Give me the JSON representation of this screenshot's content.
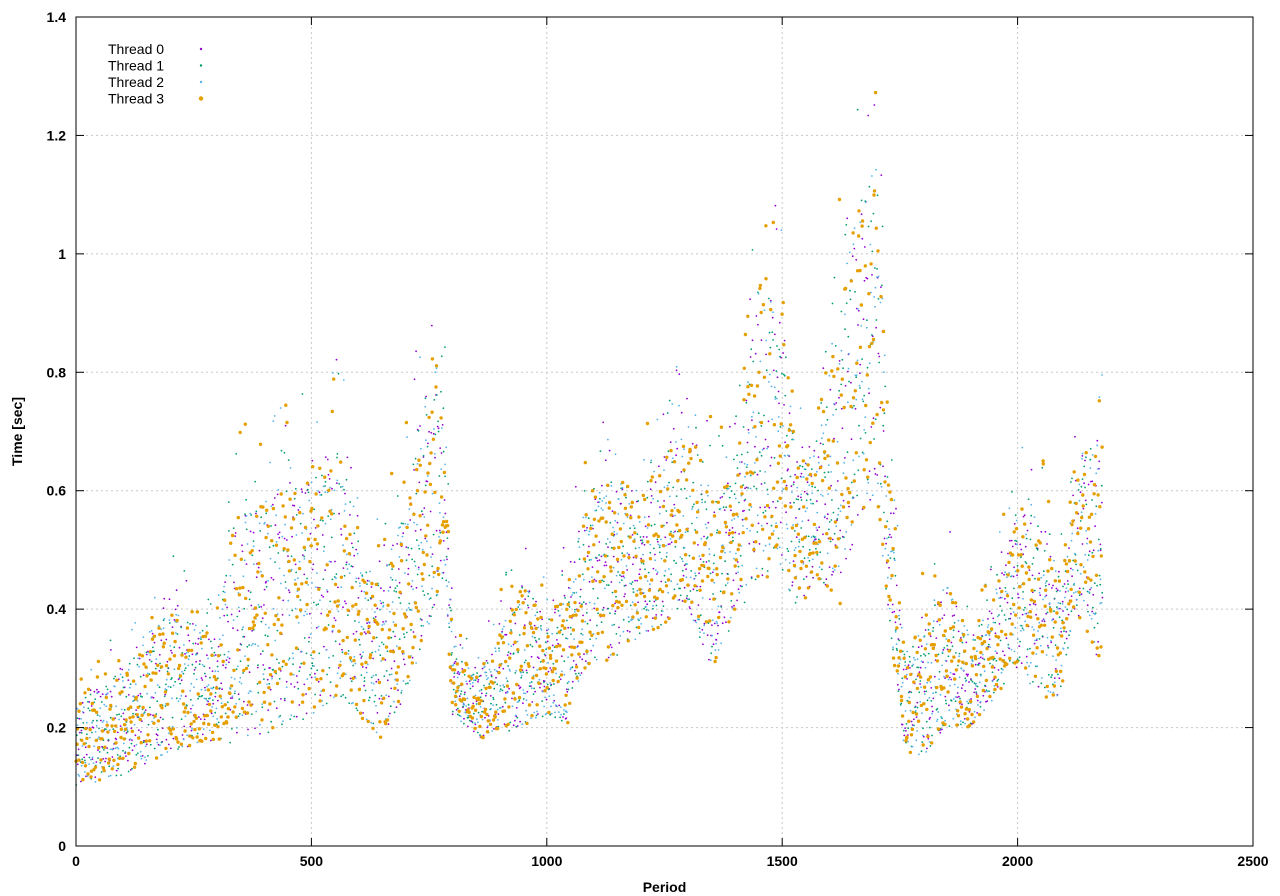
{
  "chart_data": {
    "type": "scatter",
    "title": "",
    "xlabel": "Period",
    "ylabel": "Time [sec]",
    "xlim": [
      0,
      2500
    ],
    "ylim": [
      0,
      1.4
    ],
    "x_ticks": [
      "0",
      "500",
      "1000",
      "1500",
      "2000",
      "2500"
    ],
    "y_ticks": [
      "0",
      "0.2",
      "0.4",
      "0.6",
      "0.8",
      "1",
      "1.2",
      "1.4"
    ],
    "grid": true,
    "legend_position": "top-left",
    "series": [
      {
        "name": "Thread 0",
        "color": "#9400d3",
        "marker": "dot"
      },
      {
        "name": "Thread 1",
        "color": "#009e73",
        "marker": "dot"
      },
      {
        "name": "Thread 2",
        "color": "#56b4e9",
        "marker": "dot"
      },
      {
        "name": "Thread 3",
        "color": "#e69f00",
        "marker": "dot"
      }
    ],
    "x_range_of_points": [
      0,
      2180
    ],
    "trend_envelope": {
      "x": [
        0,
        100,
        200,
        300,
        330,
        440,
        500,
        560,
        600,
        650,
        700,
        760,
        780,
        800,
        860,
        950,
        1000,
        1050,
        1080,
        1150,
        1200,
        1300,
        1350,
        1400,
        1450,
        1500,
        1530,
        1580,
        1620,
        1660,
        1700,
        1730,
        1760,
        1800,
        1850,
        1900,
        1950,
        2000,
        2050,
        2090,
        2120,
        2180
      ],
      "low": [
        0.1,
        0.12,
        0.16,
        0.18,
        0.17,
        0.2,
        0.22,
        0.25,
        0.22,
        0.18,
        0.25,
        0.4,
        0.45,
        0.22,
        0.18,
        0.2,
        0.22,
        0.2,
        0.3,
        0.32,
        0.35,
        0.4,
        0.3,
        0.38,
        0.45,
        0.45,
        0.4,
        0.45,
        0.4,
        0.55,
        0.6,
        0.35,
        0.15,
        0.15,
        0.2,
        0.2,
        0.25,
        0.3,
        0.25,
        0.25,
        0.4,
        0.3
      ],
      "high": [
        0.24,
        0.3,
        0.4,
        0.35,
        0.55,
        0.6,
        0.62,
        0.7,
        0.48,
        0.45,
        0.6,
        0.85,
        0.8,
        0.32,
        0.3,
        0.45,
        0.38,
        0.45,
        0.6,
        0.62,
        0.6,
        0.72,
        0.6,
        0.62,
        0.95,
        0.9,
        0.65,
        0.7,
        0.9,
        1.1,
        1.15,
        0.6,
        0.32,
        0.4,
        0.45,
        0.35,
        0.42,
        0.58,
        0.55,
        0.45,
        0.65,
        0.7
      ]
    }
  }
}
